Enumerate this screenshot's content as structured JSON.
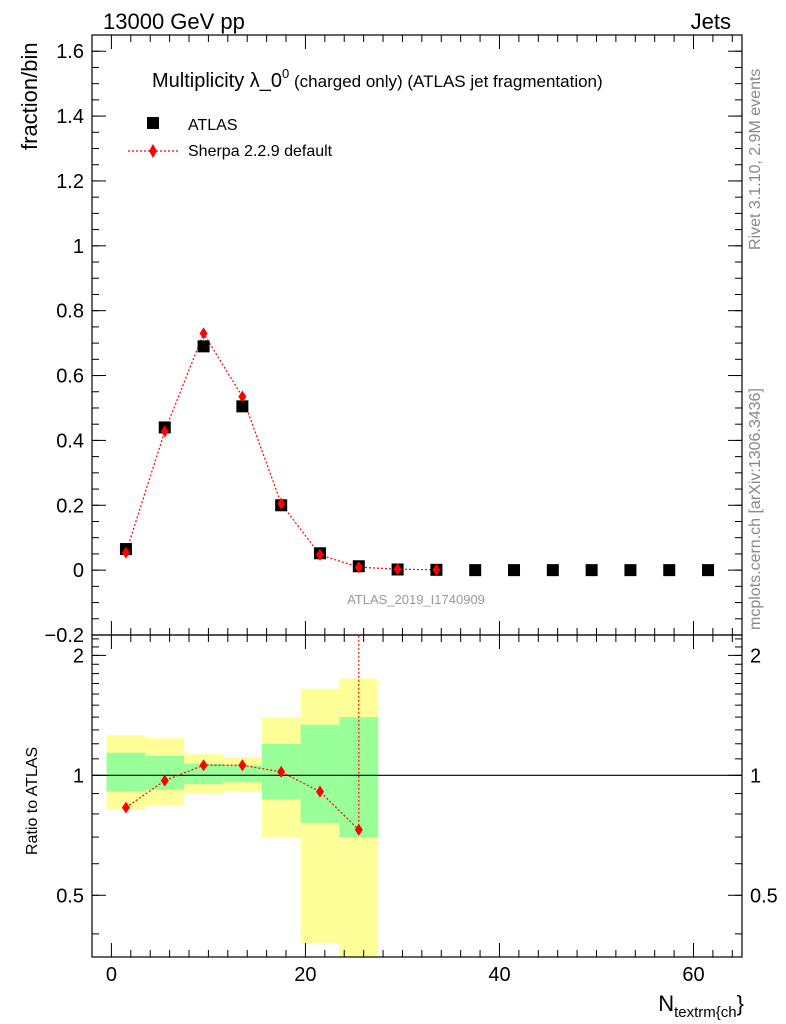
{
  "header": {
    "left": "13000 GeV pp",
    "right": "Jets"
  },
  "side_labels": {
    "rivet": "Rivet 3.1.10,  2.9M events",
    "mcplots": "mcplots.cern.ch [arXiv:1306.3436]"
  },
  "chart_data": [
    {
      "type": "scatter",
      "title_main": "Multiplicity λ_0",
      "title_sup": "0",
      "title_rest": " (charged only) (ATLAS jet fragmentation)",
      "ylabel": "fraction/bin",
      "analysis_label": "ATLAS_2019_I1740909",
      "xlim": [
        -2,
        65
      ],
      "ylim": [
        -0.2,
        1.65
      ],
      "yticks": [
        -0.2,
        0,
        0.2,
        0.4,
        0.6,
        0.8,
        1,
        1.2,
        1.4,
        1.6
      ],
      "ytick_labels": [
        "−0.2",
        "0",
        "0.2",
        "0.4",
        "0.6",
        "0.8",
        "1",
        "1.2",
        "1.4",
        "1.6"
      ],
      "legend": {
        "position": "top-left",
        "entries": [
          "ATLAS",
          "Sherpa 2.2.9 default"
        ]
      },
      "series": [
        {
          "name": "ATLAS",
          "marker": "square",
          "color": "#000000",
          "x": [
            1.5,
            5.5,
            9.5,
            13.5,
            17.5,
            21.5,
            25.5,
            29.5,
            33.5,
            37.5,
            41.5,
            45.5,
            49.5,
            53.5,
            57.5,
            61.5
          ],
          "values": [
            0.065,
            0.44,
            0.69,
            0.505,
            0.2,
            0.052,
            0.012,
            0.002,
            0.001,
            0.0,
            0.0,
            0.0,
            0.0,
            0.0,
            0.0,
            0.0
          ]
        },
        {
          "name": "Sherpa 2.2.9 default",
          "marker": "diamond",
          "color": "#ff0000",
          "line": "dotted",
          "x": [
            1.5,
            5.5,
            9.5,
            13.5,
            17.5,
            21.5,
            25.5,
            29.5,
            33.5
          ],
          "values": [
            0.054,
            0.428,
            0.73,
            0.535,
            0.205,
            0.047,
            0.009,
            0.003,
            0.001
          ]
        }
      ]
    },
    {
      "type": "scatter",
      "ylabel": "Ratio to ATLAS",
      "xlabel_main": "N",
      "xlabel_sub": "textrm{ch",
      "xlabel_end": "}",
      "xlim": [
        -2,
        65
      ],
      "ylim": [
        0.35,
        2.25
      ],
      "log_y": true,
      "xticks": [
        0,
        20,
        40,
        60
      ],
      "xtick_labels": [
        "0",
        "20",
        "40",
        "60"
      ],
      "yticks": [
        0.5,
        1,
        2
      ],
      "ytick_labels": [
        "0.5",
        "1",
        "2"
      ],
      "bands": {
        "bin_low": [
          -0.5,
          3.5,
          7.5,
          11.5,
          15.5,
          19.5,
          23.5
        ],
        "bin_high": [
          3.5,
          7.5,
          11.5,
          15.5,
          19.5,
          23.5,
          27.5
        ],
        "inner_low": [
          0.91,
          0.92,
          0.95,
          0.96,
          0.87,
          0.76,
          0.7
        ],
        "inner_high": [
          1.14,
          1.12,
          1.07,
          1.06,
          1.2,
          1.34,
          1.4
        ],
        "outer_low": [
          0.82,
          0.84,
          0.9,
          0.91,
          0.7,
          0.38,
          0.3
        ],
        "outer_high": [
          1.26,
          1.24,
          1.13,
          1.11,
          1.4,
          1.65,
          1.75
        ],
        "inner_color": "#99ff99",
        "outer_color": "#ffff99"
      },
      "series": [
        {
          "name": "Sherpa 2.2.9 default",
          "marker": "diamond",
          "color": "#ff0000",
          "line": "dotted",
          "x": [
            1.5,
            5.5,
            9.5,
            13.5,
            17.5,
            21.5,
            25.5
          ],
          "values": [
            0.83,
            0.97,
            1.06,
            1.06,
            1.02,
            0.91,
            0.73
          ],
          "err_up": [
            0,
            0,
            0,
            0,
            0,
            0,
            3.0
          ],
          "err_down": [
            0,
            0,
            0,
            0,
            0,
            0,
            0
          ]
        }
      ]
    }
  ]
}
